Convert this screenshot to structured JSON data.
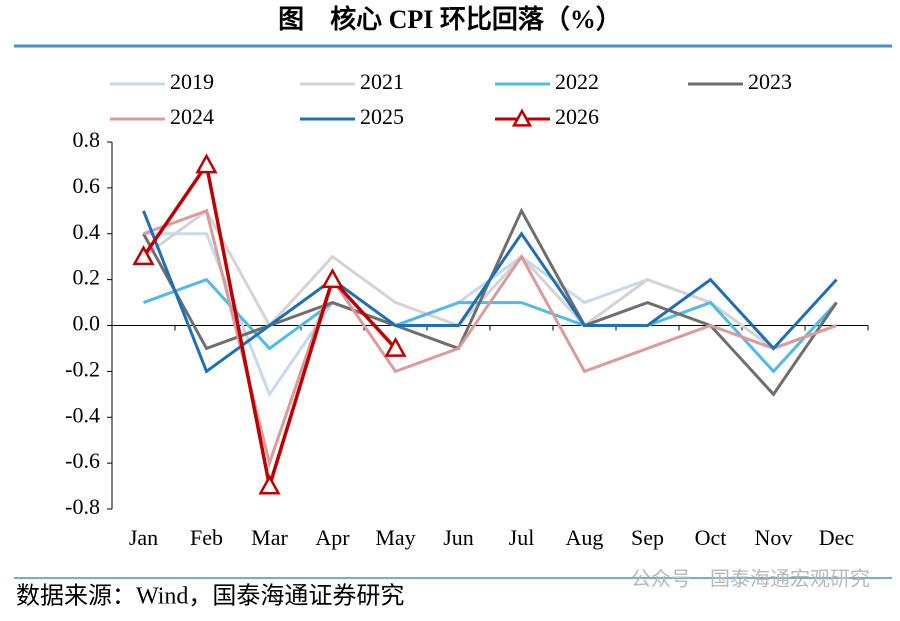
{
  "title": "图　核心 CPI 环比回落（%）",
  "source": "数据来源：Wind，国泰海通证券研究",
  "watermark": "公众号 · 国泰海通宏观研究",
  "chart_data": {
    "type": "line",
    "categories": [
      "Jan",
      "Feb",
      "Mar",
      "Apr",
      "May",
      "Jun",
      "Jul",
      "Aug",
      "Sep",
      "Oct",
      "Nov",
      "Dec"
    ],
    "ylim": [
      -0.8,
      0.8
    ],
    "yticks": [
      -0.8,
      -0.6,
      -0.4,
      -0.2,
      {
        "value": 0,
        "label": "0.0"
      },
      0.2,
      0.4,
      0.6,
      0.8
    ],
    "series": [
      {
        "name": "2019",
        "color": "#c6d9f0",
        "values": [
          0.4,
          0.4,
          -0.3,
          0.1,
          0.0,
          0.1,
          0.3,
          0.1,
          0.2,
          0.1,
          -0.1,
          0.0
        ]
      },
      {
        "name": "2021",
        "color": "#d4d4d4",
        "values": [
          0.3,
          0.5,
          0.0,
          0.3,
          0.1,
          0.0,
          0.3,
          0.0,
          0.2,
          0.1,
          -0.1,
          0.0
        ]
      },
      {
        "name": "2022",
        "color": "#4fbbe8",
        "values": [
          0.1,
          0.2,
          -0.1,
          0.1,
          0.0,
          0.1,
          0.1,
          0.0,
          0.0,
          0.1,
          -0.2,
          0.1
        ]
      },
      {
        "name": "2023",
        "color": "#6e6e6e",
        "values": [
          0.4,
          -0.1,
          0.0,
          0.1,
          0.0,
          -0.1,
          0.5,
          0.0,
          0.1,
          0.0,
          -0.3,
          0.1
        ]
      },
      {
        "name": "2024",
        "color": "#dc9a9a",
        "values": [
          0.4,
          0.5,
          -0.6,
          0.2,
          -0.2,
          -0.1,
          0.3,
          -0.2,
          -0.1,
          0.0,
          -0.1,
          0.0
        ]
      },
      {
        "name": "2025",
        "color": "#1f6fb4",
        "values": [
          0.5,
          -0.2,
          0.0,
          0.2,
          0.0,
          0.0,
          0.4,
          0.0,
          0.0,
          0.2,
          -0.1,
          0.2
        ]
      },
      {
        "name": "2026",
        "color": "#c00000",
        "marker": "triangle",
        "values": [
          0.3,
          0.7,
          -0.7,
          0.2,
          -0.1,
          null,
          null,
          null,
          null,
          null,
          null,
          null
        ]
      }
    ]
  }
}
